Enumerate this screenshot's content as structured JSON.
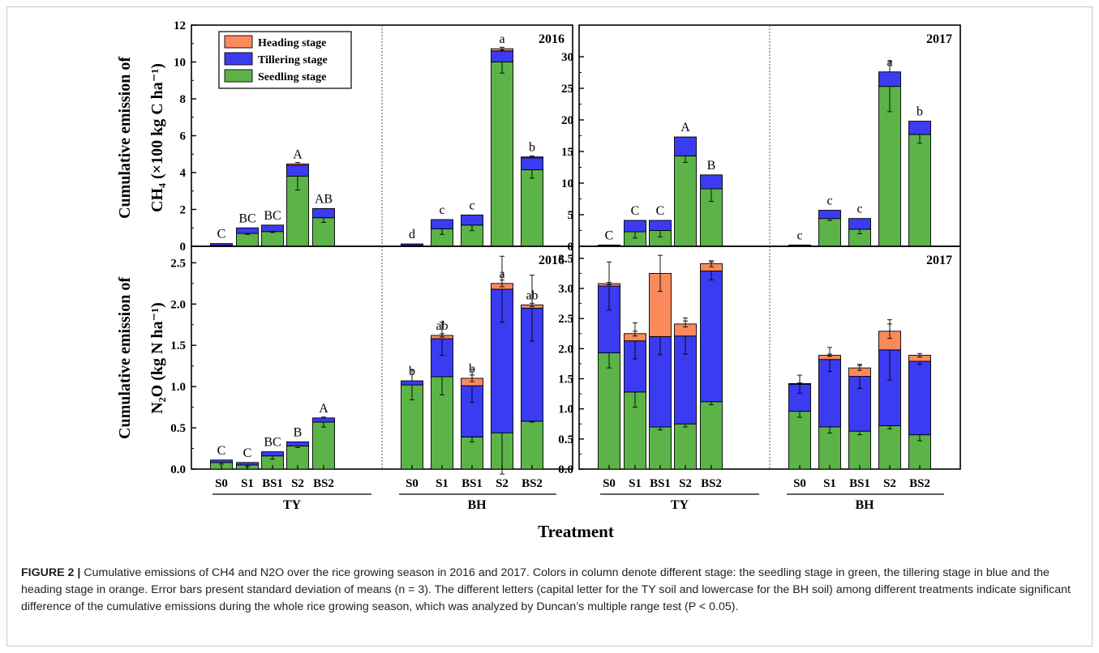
{
  "figure": {
    "x_title": "Treatment",
    "y_labels": {
      "ch4_line1": "Cumulative emission of",
      "ch4_line2": "CH4 (×100 kg C ha-1)",
      "n2o_line1": "Cumulative emission of",
      "n2o_line2": "N2O (kg N ha-1)"
    },
    "legend": [
      "Heading stage",
      "Tillering stage",
      "Seedling stage"
    ],
    "groups": [
      "TY",
      "BH"
    ],
    "colors": {
      "seedling": "#5cb348",
      "tillering": "#3b3bf2",
      "heading": "#fa8a5c"
    }
  },
  "chart_data": [
    {
      "type": "bar",
      "stacked": true,
      "panel": "CH4 2016",
      "year_label": "2016",
      "ylabel": "CH4 (×100 kg C ha-1)",
      "ylim": [
        0,
        12
      ],
      "yticks": [
        0,
        2,
        4,
        6,
        8,
        10,
        12
      ],
      "legend": [
        "Heading stage",
        "Tillering stage",
        "Seedling stage"
      ],
      "legend_position": "top-left",
      "categories": [
        "S0",
        "S1",
        "BS1",
        "S2",
        "BS2",
        "S0",
        "S1",
        "BS1",
        "S2",
        "BS2"
      ],
      "groups": [
        {
          "name": "TY",
          "categories": [
            "S0",
            "S1",
            "BS1",
            "S2",
            "BS2"
          ]
        },
        {
          "name": "BH",
          "categories": [
            "S0",
            "S1",
            "BS1",
            "S2",
            "BS2"
          ]
        }
      ],
      "series": [
        {
          "name": "Seedling stage",
          "values": [
            0.05,
            0.7,
            0.8,
            3.8,
            1.55,
            0.05,
            0.95,
            1.15,
            10.0,
            4.15
          ],
          "errors": [
            0,
            0.05,
            0.05,
            0.75,
            0.25,
            0,
            0.3,
            0.3,
            0.6,
            0.45
          ]
        },
        {
          "name": "Tillering stage",
          "values": [
            0.1,
            0.3,
            0.35,
            0.6,
            0.5,
            0.08,
            0.5,
            0.55,
            0.6,
            0.65
          ],
          "errors": [
            0,
            0,
            0,
            0,
            0,
            0,
            0,
            0,
            0,
            0
          ]
        },
        {
          "name": "Heading stage",
          "values": [
            0,
            0,
            0,
            0.07,
            0,
            0,
            0,
            0,
            0.12,
            0.05
          ],
          "errors": [
            0,
            0,
            0,
            0,
            0,
            0,
            0,
            0,
            0.08,
            0.05
          ]
        }
      ],
      "significance": [
        "C",
        "BC",
        "BC",
        "A",
        "AB",
        "d",
        "c",
        "c",
        "a",
        "b"
      ]
    },
    {
      "type": "bar",
      "stacked": true,
      "panel": "CH4 2017",
      "year_label": "2017",
      "ylabel": "CH4 (×100 kg C ha-1)",
      "ylim": [
        0,
        35
      ],
      "yticks": [
        0,
        5,
        10,
        15,
        20,
        25,
        30
      ],
      "categories": [
        "S0",
        "S1",
        "BS1",
        "S2",
        "BS2",
        "S0",
        "S1",
        "BS1",
        "S2",
        "BS2"
      ],
      "groups": [
        {
          "name": "TY",
          "categories": [
            "S0",
            "S1",
            "BS1",
            "S2",
            "BS2"
          ]
        },
        {
          "name": "BH",
          "categories": [
            "S0",
            "S1",
            "BS1",
            "S2",
            "BS2"
          ]
        }
      ],
      "series": [
        {
          "name": "Seedling stage",
          "values": [
            0.1,
            2.3,
            2.5,
            14.3,
            9.1,
            0.1,
            4.4,
            2.7,
            25.3,
            17.7
          ],
          "errors": [
            0,
            1.0,
            1.0,
            1.0,
            2.0,
            0,
            0.3,
            0.7,
            4.0,
            1.4
          ]
        },
        {
          "name": "Tillering stage",
          "values": [
            0.1,
            1.8,
            1.6,
            3.0,
            2.2,
            0.1,
            1.3,
            1.7,
            2.3,
            2.1
          ],
          "errors": [
            0,
            0,
            0,
            0,
            0,
            0,
            0,
            0,
            0,
            0
          ]
        },
        {
          "name": "Heading stage",
          "values": [
            0,
            0,
            0,
            0,
            0,
            0,
            0,
            0,
            0,
            0
          ],
          "errors": [
            0,
            0,
            0,
            0,
            0,
            0,
            0,
            0,
            0.4,
            0
          ]
        }
      ],
      "significance": [
        "C",
        "C",
        "C",
        "A",
        "B",
        "c",
        "c",
        "c",
        "a",
        "b"
      ]
    },
    {
      "type": "bar",
      "stacked": true,
      "panel": "N2O 2016",
      "year_label": "2016",
      "ylabel": "N2O (kg N ha-1)",
      "ylim": [
        0,
        2.7
      ],
      "yticks": [
        0.0,
        0.5,
        1.0,
        1.5,
        2.0,
        2.5
      ],
      "categories": [
        "S0",
        "S1",
        "BS1",
        "S2",
        "BS2",
        "S0",
        "S1",
        "BS1",
        "S2",
        "BS2"
      ],
      "groups": [
        {
          "name": "TY",
          "categories": [
            "S0",
            "S1",
            "BS1",
            "S2",
            "BS2"
          ]
        },
        {
          "name": "BH",
          "categories": [
            "S0",
            "S1",
            "BS1",
            "S2",
            "BS2"
          ]
        }
      ],
      "series": [
        {
          "name": "Seedling stage",
          "values": [
            0.08,
            0.05,
            0.16,
            0.28,
            0.57,
            1.02,
            1.12,
            0.39,
            0.44,
            0.58
          ],
          "errors": [
            0.02,
            0.02,
            0.04,
            0.02,
            0.06,
            0.18,
            0.22,
            0.06,
            0.5,
            0.01
          ]
        },
        {
          "name": "Tillering stage",
          "values": [
            0.03,
            0.03,
            0.05,
            0.05,
            0.05,
            0.05,
            0.46,
            0.62,
            1.74,
            1.37
          ],
          "errors": [
            0,
            0,
            0,
            0,
            0,
            0,
            0.2,
            0.2,
            0.4,
            0.4
          ]
        },
        {
          "name": "Heading stage",
          "values": [
            0,
            0,
            0,
            0,
            0,
            0,
            0.04,
            0.09,
            0.07,
            0.04
          ],
          "errors": [
            0,
            0,
            0,
            0,
            0,
            0,
            0.02,
            0.04,
            0.04,
            0.02
          ]
        }
      ],
      "significance": [
        "C",
        "C",
        "BC",
        "B",
        "A",
        "b",
        "ab",
        "b",
        "a",
        "ab"
      ]
    },
    {
      "type": "bar",
      "stacked": true,
      "panel": "N2O 2017",
      "year_label": "2017",
      "ylabel": "N2O (kg N ha-1)",
      "ylim": [
        0,
        3.7
      ],
      "yticks": [
        0.0,
        0.5,
        1.0,
        1.5,
        2.0,
        2.5,
        3.0,
        3.5
      ],
      "categories": [
        "S0",
        "S1",
        "BS1",
        "S2",
        "BS2",
        "S0",
        "S1",
        "BS1",
        "S2",
        "BS2"
      ],
      "groups": [
        {
          "name": "TY",
          "categories": [
            "S0",
            "S1",
            "BS1",
            "S2",
            "BS2"
          ]
        },
        {
          "name": "BH",
          "categories": [
            "S0",
            "S1",
            "BS1",
            "S2",
            "BS2"
          ]
        }
      ],
      "series": [
        {
          "name": "Seedling stage",
          "values": [
            1.93,
            1.28,
            0.7,
            0.75,
            1.12,
            0.96,
            0.7,
            0.63,
            0.72,
            0.57
          ],
          "errors": [
            0.25,
            0.25,
            0.05,
            0.05,
            0.05,
            0.1,
            0.1,
            0.06,
            0.05,
            0.1
          ]
        },
        {
          "name": "Tillering stage",
          "values": [
            1.11,
            0.85,
            1.5,
            1.46,
            2.17,
            0.45,
            1.12,
            0.91,
            1.26,
            1.22
          ],
          "errors": [
            0.4,
            0.3,
            0.3,
            0.3,
            0.15,
            0.15,
            0.2,
            0.2,
            0.5,
            0.05
          ]
        },
        {
          "name": "Heading stage",
          "values": [
            0.04,
            0.12,
            1.05,
            0.2,
            0.12,
            0.01,
            0.07,
            0.14,
            0.31,
            0.1
          ],
          "errors": [
            0.02,
            0.04,
            0.3,
            0.05,
            0.05,
            0.01,
            0.02,
            0.04,
            0.12,
            0.03
          ]
        }
      ],
      "significance": [
        "",
        "",
        "",
        "",
        "",
        "",
        "",
        "",
        "",
        ""
      ]
    }
  ],
  "caption": {
    "label": "FIGURE 2 |",
    "text": "Cumulative emissions of CH4 and N2O over the rice growing season in 2016 and 2017. Colors in column denote different stage: the seedling stage in green, the tillering stage in blue and the heading stage in orange. Error bars present standard deviation of means (n = 3). The different letters (capital letter for the TY soil and lowercase for the BH soil) among different treatments indicate significant difference of the cumulative emissions during the whole rice growing season, which was analyzed by Duncan’s multiple range test (P < 0.05)."
  }
}
